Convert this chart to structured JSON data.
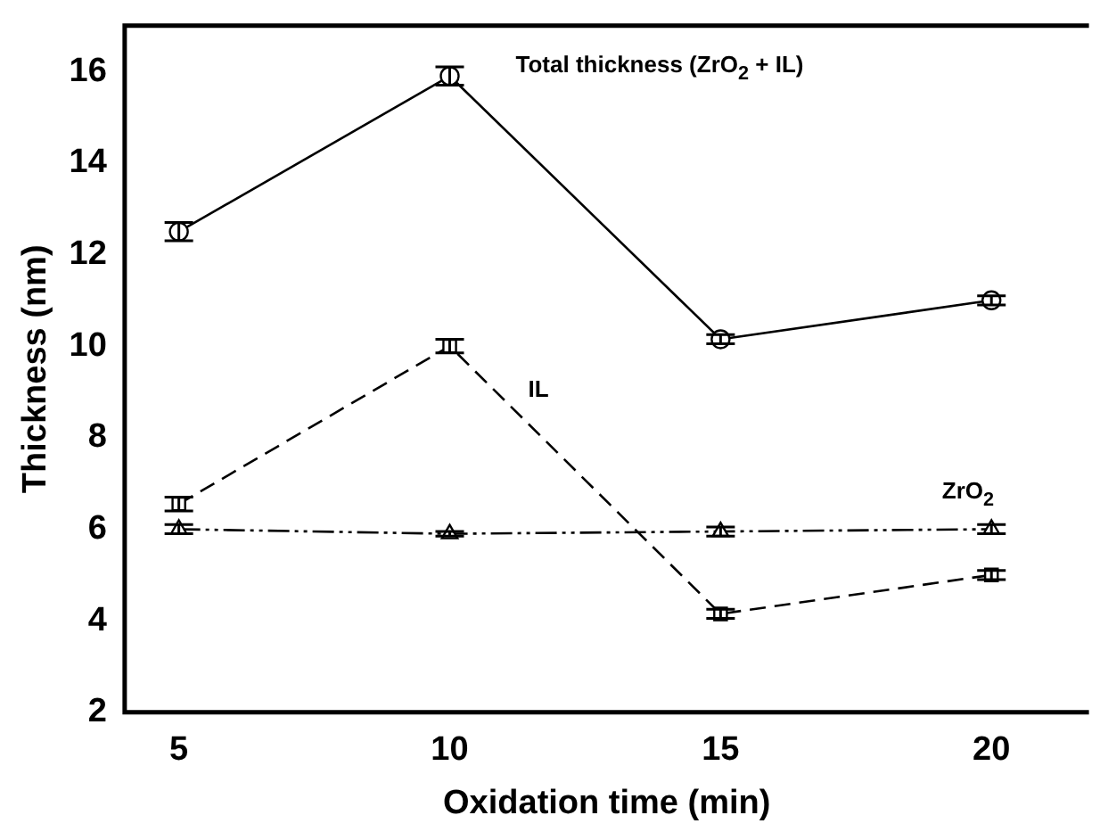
{
  "chart_data": {
    "type": "line",
    "xlabel": "Oxidation time (min)",
    "ylabel": "Thickness (nm)",
    "x": [
      5,
      10,
      15,
      20
    ],
    "series": [
      {
        "color": "#000000",
        "marker": "circle",
        "line_style": "solid",
        "values": [
          12.5,
          15.9,
          10.15,
          11.0
        ],
        "errors": [
          0.2,
          0.2,
          0.1,
          0.1
        ]
      },
      {
        "color": "#000000",
        "marker": "square",
        "line_style": "dashed",
        "values": [
          6.55,
          10.0,
          4.15,
          5.0
        ],
        "errors": [
          0.15,
          0.15,
          0.1,
          0.1
        ]
      },
      {
        "color": "#000000",
        "marker": "triangle",
        "line_style": "dashdot",
        "values": [
          6.0,
          5.9,
          5.95,
          6.0
        ],
        "errors": [
          0.1,
          0.05,
          0.1,
          0.1
        ]
      }
    ],
    "annotations": [
      "Total thickness (ZrO$_{2}$ + IL)",
      "IL",
      "ZrO$_{2}$"
    ],
    "xlim": [
      4,
      21.8
    ],
    "xticks": [
      5,
      10,
      15,
      20
    ],
    "ylim": [
      2,
      17
    ],
    "yticks": [
      2,
      4,
      6,
      8,
      10,
      12,
      14,
      16
    ],
    "grid": false,
    "legend": false
  }
}
